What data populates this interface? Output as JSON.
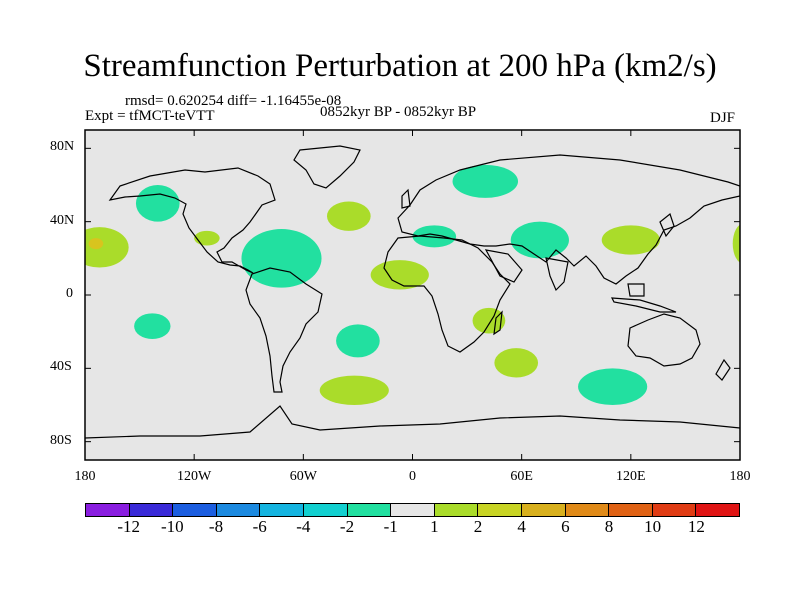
{
  "title": "Streamfunction Perturbation at 200 hPa (km2/s)",
  "stats": "rmsd= 0.620254 diff= -1.16455e-08",
  "left_label": "Expt = tfMCT-teVTT",
  "center_label": "0852kyr BP - 0852kyr BP",
  "right_label": "DJF",
  "map": {
    "lon_range": [
      -180,
      180
    ],
    "lat_range": [
      -90,
      90
    ],
    "background": "#e6e6e6",
    "y_ticks": [
      {
        "label": "80N",
        "lat": 80
      },
      {
        "label": "40N",
        "lat": 40
      },
      {
        "label": "0",
        "lat": 0
      },
      {
        "label": "40S",
        "lat": -40
      },
      {
        "label": "80S",
        "lat": -80
      }
    ],
    "x_ticks": [
      {
        "label": "180",
        "lon": -180
      },
      {
        "label": "120W",
        "lon": -120
      },
      {
        "label": "60W",
        "lon": -60
      },
      {
        "label": "0",
        "lon": 0
      },
      {
        "label": "60E",
        "lon": 60
      },
      {
        "label": "120E",
        "lon": 120
      },
      {
        "label": "180",
        "lon": 180
      }
    ],
    "anomalies": [
      {
        "name": "blob-npac-east",
        "lon": -140,
        "lat": 50,
        "rlon": 12,
        "rlat": 10,
        "color": "#22e0a0"
      },
      {
        "name": "blob-npac-west",
        "lon": -172,
        "lat": 26,
        "rlon": 16,
        "rlat": 11,
        "color": "#aadc2a"
      },
      {
        "name": "blob-npac-core",
        "lon": -174,
        "lat": 28,
        "rlon": 4,
        "rlat": 3,
        "color": "#d8c41e"
      },
      {
        "name": "blob-mexico",
        "lon": -113,
        "lat": 31,
        "rlon": 7,
        "rlat": 4,
        "color": "#aadc2a"
      },
      {
        "name": "blob-natl",
        "lon": -35,
        "lat": 43,
        "rlon": 12,
        "rlat": 8,
        "color": "#aadc2a"
      },
      {
        "name": "blob-caribbean",
        "lon": -72,
        "lat": 20,
        "rlon": 22,
        "rlat": 16,
        "color": "#22e0a0"
      },
      {
        "name": "blob-siberia",
        "lon": 40,
        "lat": 62,
        "rlon": 18,
        "rlat": 9,
        "color": "#22e0a0"
      },
      {
        "name": "blob-medit",
        "lon": 12,
        "lat": 32,
        "rlon": 12,
        "rlat": 6,
        "color": "#22e0a0"
      },
      {
        "name": "blob-arabia",
        "lon": 70,
        "lat": 30,
        "rlon": 16,
        "rlat": 10,
        "color": "#22e0a0"
      },
      {
        "name": "blob-china",
        "lon": 120,
        "lat": 30,
        "rlon": 16,
        "rlat": 8,
        "color": "#aadc2a"
      },
      {
        "name": "blob-dateline-east",
        "lon": 182,
        "lat": 28,
        "rlon": 6,
        "rlat": 11,
        "color": "#aadc2a"
      },
      {
        "name": "blob-wafrica",
        "lon": -7,
        "lat": 11,
        "rlon": 16,
        "rlat": 8,
        "color": "#aadc2a"
      },
      {
        "name": "blob-madagascar",
        "lon": 42,
        "lat": -14,
        "rlon": 9,
        "rlat": 7,
        "color": "#aadc2a"
      },
      {
        "name": "blob-spac",
        "lon": -143,
        "lat": -17,
        "rlon": 10,
        "rlat": 7,
        "color": "#22e0a0"
      },
      {
        "name": "blob-satl",
        "lon": -30,
        "lat": -25,
        "rlon": 12,
        "rlat": 9,
        "color": "#22e0a0"
      },
      {
        "name": "blob-sind",
        "lon": 57,
        "lat": -37,
        "rlon": 12,
        "rlat": 8,
        "color": "#aadc2a"
      },
      {
        "name": "blob-southern-atl",
        "lon": -32,
        "lat": -52,
        "rlon": 19,
        "rlat": 8,
        "color": "#aadc2a"
      },
      {
        "name": "blob-aus-south",
        "lon": 110,
        "lat": -50,
        "rlon": 19,
        "rlat": 10,
        "color": "#22e0a0"
      }
    ]
  },
  "colorbar": {
    "colors": [
      "#8a1ee0",
      "#3a2ad8",
      "#1c5ee0",
      "#1c8ae0",
      "#14b4e0",
      "#12d0d0",
      "#22e0a0",
      "#e6e6e6",
      "#aadc2a",
      "#c8d424",
      "#d8b01e",
      "#e08a18",
      "#e06214",
      "#e03c14",
      "#e01414"
    ],
    "labels": [
      "-12",
      "-10",
      "-8",
      "-6",
      "-4",
      "-2",
      "-1",
      "1",
      "2",
      "4",
      "6",
      "8",
      "10",
      "12"
    ]
  }
}
